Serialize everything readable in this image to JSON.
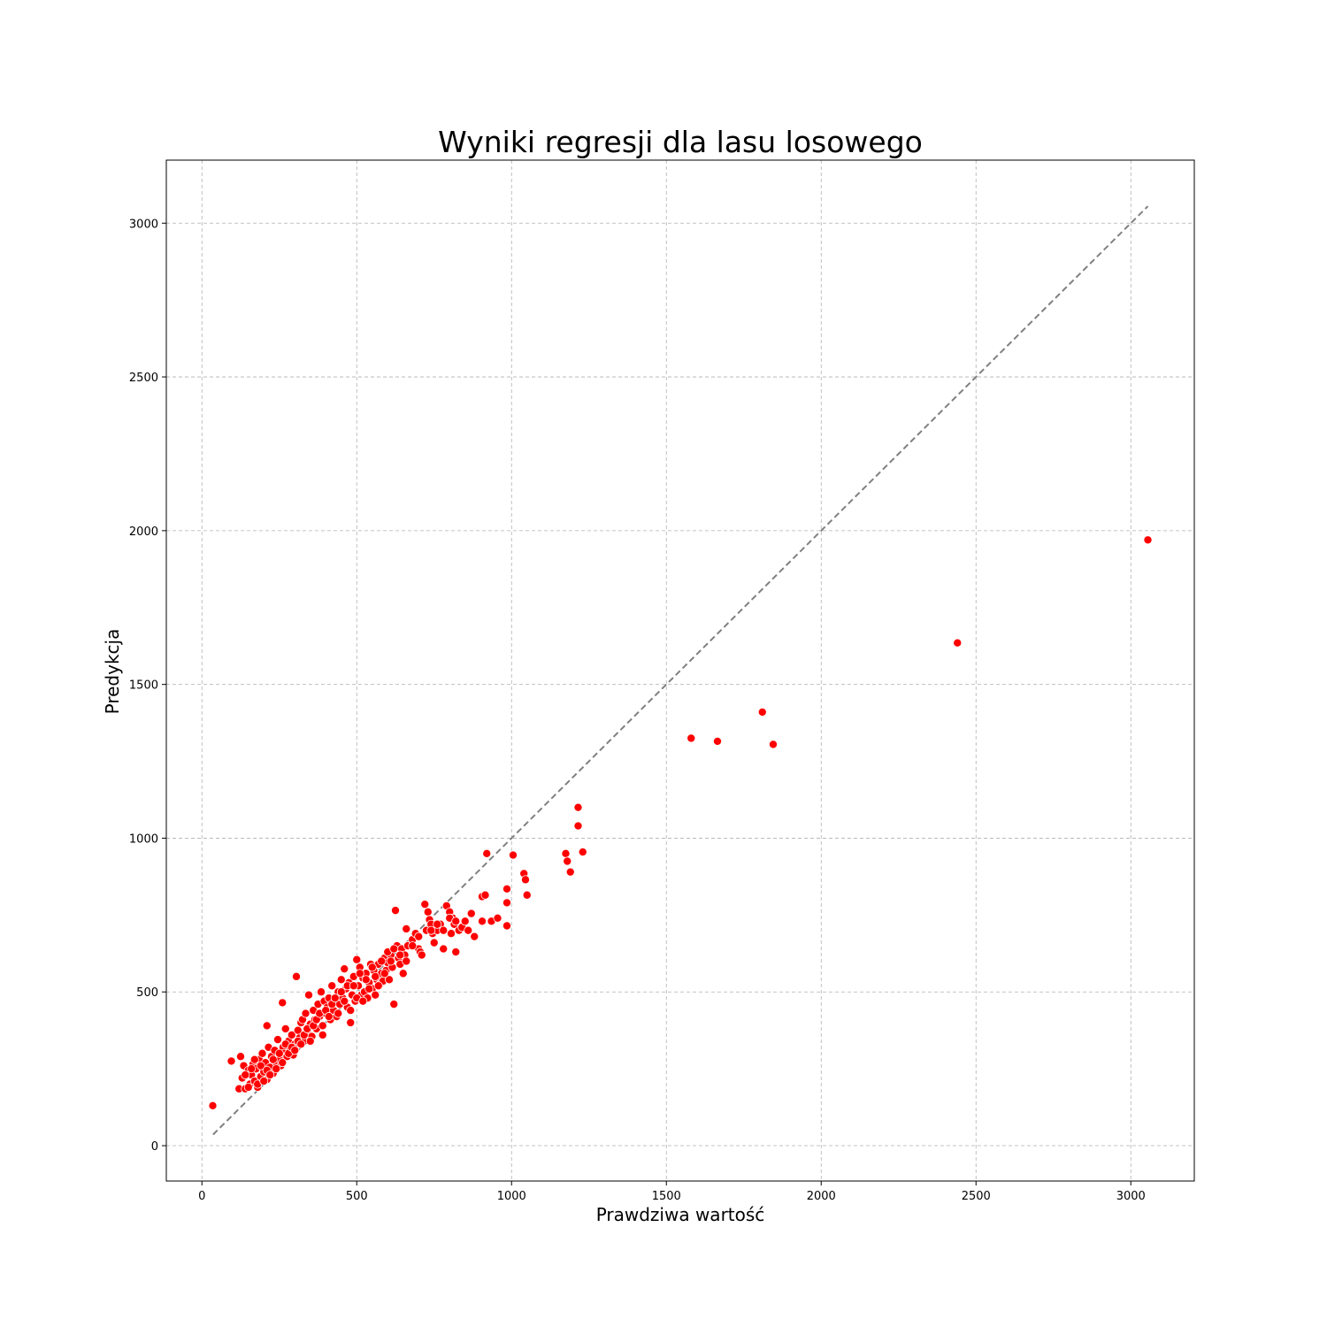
{
  "chart_data": {
    "type": "scatter",
    "title": "Wyniki regresji dla lasu losowego",
    "xlabel": "Prawdziwa wartość",
    "ylabel": "Predykcja",
    "xlim": [
      -115,
      3205
    ],
    "ylim": [
      -115,
      3205
    ],
    "x_ticks": [
      0,
      500,
      1000,
      1500,
      2000,
      2500,
      3000
    ],
    "y_ticks": [
      0,
      500,
      1000,
      1500,
      2000,
      2500,
      3000
    ],
    "grid": true,
    "reference_line": {
      "x": [
        36,
        3055
      ],
      "y": [
        36,
        3055
      ],
      "style": "dashed",
      "color": "#808080"
    },
    "marker_color": "#ff0000",
    "series": [
      {
        "points": [
          [
            35,
            130
          ],
          [
            95,
            275
          ],
          [
            120,
            185
          ],
          [
            125,
            290
          ],
          [
            130,
            220
          ],
          [
            135,
            260
          ],
          [
            140,
            185
          ],
          [
            150,
            245
          ],
          [
            155,
            200
          ],
          [
            160,
            230
          ],
          [
            165,
            265
          ],
          [
            170,
            210
          ],
          [
            175,
            250
          ],
          [
            180,
            190
          ],
          [
            185,
            280
          ],
          [
            190,
            225
          ],
          [
            195,
            300
          ],
          [
            200,
            240
          ],
          [
            205,
            270
          ],
          [
            210,
            390
          ],
          [
            210,
            215
          ],
          [
            215,
            320
          ],
          [
            220,
            255
          ],
          [
            225,
            290
          ],
          [
            230,
            235
          ],
          [
            235,
            310
          ],
          [
            240,
            270
          ],
          [
            245,
            345
          ],
          [
            250,
            285
          ],
          [
            255,
            260
          ],
          [
            260,
            465
          ],
          [
            262,
            320
          ],
          [
            265,
            300
          ],
          [
            270,
            380
          ],
          [
            275,
            290
          ],
          [
            280,
            340
          ],
          [
            285,
            310
          ],
          [
            290,
            360
          ],
          [
            295,
            295
          ],
          [
            300,
            330
          ],
          [
            305,
            550
          ],
          [
            310,
            375
          ],
          [
            315,
            350
          ],
          [
            320,
            400
          ],
          [
            325,
            410
          ],
          [
            330,
            340
          ],
          [
            335,
            430
          ],
          [
            340,
            370
          ],
          [
            345,
            490
          ],
          [
            350,
            395
          ],
          [
            355,
            355
          ],
          [
            360,
            440
          ],
          [
            365,
            410
          ],
          [
            370,
            380
          ],
          [
            375,
            460
          ],
          [
            380,
            420
          ],
          [
            385,
            500
          ],
          [
            390,
            390
          ],
          [
            395,
            470
          ],
          [
            400,
            430
          ],
          [
            405,
            450
          ],
          [
            410,
            480
          ],
          [
            415,
            410
          ],
          [
            420,
            520
          ],
          [
            425,
            440
          ],
          [
            430,
            470
          ],
          [
            435,
            420
          ],
          [
            440,
            500
          ],
          [
            445,
            460
          ],
          [
            450,
            540
          ],
          [
            455,
            480
          ],
          [
            460,
            575
          ],
          [
            465,
            510
          ],
          [
            470,
            450
          ],
          [
            475,
            530
          ],
          [
            480,
            400
          ],
          [
            485,
            490
          ],
          [
            490,
            550
          ],
          [
            495,
            470
          ],
          [
            500,
            605
          ],
          [
            505,
            520
          ],
          [
            510,
            580
          ],
          [
            515,
            490
          ],
          [
            520,
            545
          ],
          [
            525,
            500
          ],
          [
            530,
            560
          ],
          [
            535,
            480
          ],
          [
            540,
            530
          ],
          [
            545,
            590
          ],
          [
            550,
            510
          ],
          [
            555,
            570
          ],
          [
            560,
            490
          ],
          [
            565,
            540
          ],
          [
            570,
            590
          ],
          [
            575,
            525
          ],
          [
            580,
            560
          ],
          [
            585,
            535
          ],
          [
            590,
            610
          ],
          [
            595,
            570
          ],
          [
            600,
            595
          ],
          [
            605,
            540
          ],
          [
            610,
            620
          ],
          [
            615,
            580
          ],
          [
            620,
            460
          ],
          [
            625,
            765
          ],
          [
            630,
            650
          ],
          [
            635,
            610
          ],
          [
            640,
            590
          ],
          [
            645,
            640
          ],
          [
            650,
            560
          ],
          [
            655,
            620
          ],
          [
            660,
            705
          ],
          [
            665,
            650
          ],
          [
            680,
            670
          ],
          [
            690,
            690
          ],
          [
            700,
            640
          ],
          [
            705,
            630
          ],
          [
            710,
            620
          ],
          [
            720,
            785
          ],
          [
            725,
            700
          ],
          [
            730,
            760
          ],
          [
            735,
            735
          ],
          [
            740,
            720
          ],
          [
            745,
            690
          ],
          [
            750,
            660
          ],
          [
            760,
            700
          ],
          [
            770,
            720
          ],
          [
            780,
            640
          ],
          [
            790,
            780
          ],
          [
            800,
            760
          ],
          [
            805,
            690
          ],
          [
            810,
            740
          ],
          [
            815,
            720
          ],
          [
            820,
            630
          ],
          [
            830,
            700
          ],
          [
            840,
            710
          ],
          [
            850,
            730
          ],
          [
            860,
            700
          ],
          [
            870,
            755
          ],
          [
            880,
            680
          ],
          [
            905,
            730
          ],
          [
            905,
            810
          ],
          [
            915,
            815
          ],
          [
            920,
            950
          ],
          [
            935,
            730
          ],
          [
            955,
            740
          ],
          [
            985,
            715
          ],
          [
            985,
            790
          ],
          [
            985,
            835
          ],
          [
            1005,
            945
          ],
          [
            1040,
            885
          ],
          [
            1045,
            865
          ],
          [
            1050,
            815
          ],
          [
            1175,
            950
          ],
          [
            1180,
            925
          ],
          [
            1190,
            890
          ],
          [
            1215,
            1100
          ],
          [
            1215,
            1040
          ],
          [
            1230,
            955
          ],
          [
            1580,
            1325
          ],
          [
            1665,
            1315
          ],
          [
            1810,
            1410
          ],
          [
            1845,
            1305
          ],
          [
            2440,
            1635
          ],
          [
            3055,
            1970
          ],
          [
            140,
            230
          ],
          [
            150,
            190
          ],
          [
            160,
            250
          ],
          [
            170,
            280
          ],
          [
            180,
            200
          ],
          [
            190,
            260
          ],
          [
            200,
            210
          ],
          [
            210,
            245
          ],
          [
            220,
            230
          ],
          [
            230,
            280
          ],
          [
            240,
            250
          ],
          [
            250,
            300
          ],
          [
            260,
            270
          ],
          [
            270,
            330
          ],
          [
            280,
            300
          ],
          [
            290,
            320
          ],
          [
            300,
            310
          ],
          [
            310,
            340
          ],
          [
            320,
            330
          ],
          [
            330,
            360
          ],
          [
            340,
            380
          ],
          [
            350,
            340
          ],
          [
            360,
            390
          ],
          [
            370,
            410
          ],
          [
            380,
            430
          ],
          [
            390,
            360
          ],
          [
            400,
            440
          ],
          [
            410,
            420
          ],
          [
            420,
            460
          ],
          [
            430,
            480
          ],
          [
            440,
            430
          ],
          [
            450,
            500
          ],
          [
            460,
            470
          ],
          [
            470,
            520
          ],
          [
            480,
            440
          ],
          [
            490,
            520
          ],
          [
            500,
            480
          ],
          [
            510,
            560
          ],
          [
            520,
            470
          ],
          [
            530,
            540
          ],
          [
            540,
            510
          ],
          [
            550,
            580
          ],
          [
            560,
            550
          ],
          [
            570,
            520
          ],
          [
            580,
            600
          ],
          [
            590,
            560
          ],
          [
            600,
            630
          ],
          [
            610,
            600
          ],
          [
            620,
            640
          ],
          [
            640,
            620
          ],
          [
            660,
            600
          ],
          [
            680,
            650
          ],
          [
            700,
            680
          ],
          [
            740,
            700
          ],
          [
            760,
            720
          ],
          [
            780,
            700
          ],
          [
            800,
            740
          ],
          [
            820,
            730
          ]
        ]
      }
    ]
  }
}
